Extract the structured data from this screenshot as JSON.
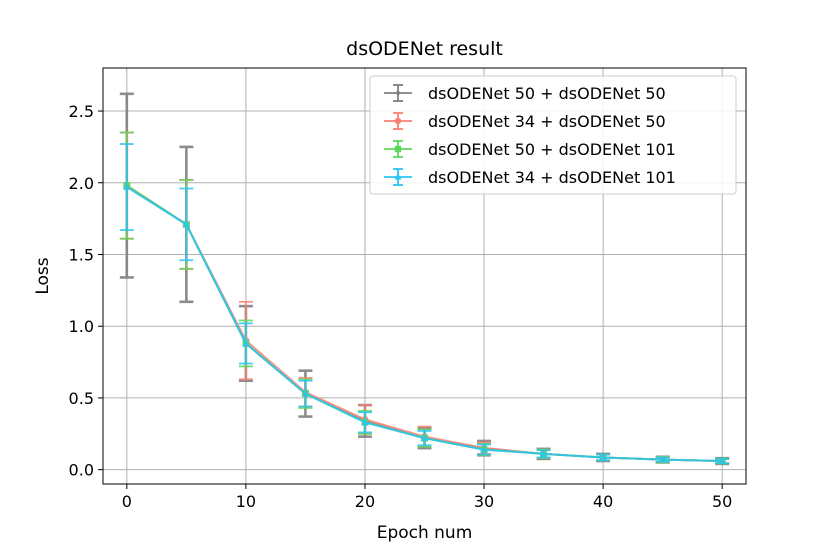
{
  "chart_data": {
    "type": "line",
    "title": "dsODENet result",
    "xlabel": "Epoch num",
    "ylabel": "Loss",
    "xlim": [
      -2,
      52
    ],
    "ylim": [
      -0.1,
      2.8
    ],
    "xticks": [
      0,
      10,
      20,
      30,
      40,
      50
    ],
    "yticks": [
      0.0,
      0.5,
      1.0,
      1.5,
      2.0,
      2.5
    ],
    "ytick_labels": [
      "0.0",
      "0.5",
      "1.0",
      "1.5",
      "2.0",
      "2.5"
    ],
    "grid": true,
    "legend_position": "top-right",
    "x": [
      0,
      5,
      10,
      15,
      20,
      25,
      30,
      35,
      40,
      45,
      50
    ],
    "series": [
      {
        "name": "dsODENet 50 + dsODENet 50",
        "color": "#808080",
        "marker": "diamond-icon",
        "values": [
          1.98,
          1.71,
          0.88,
          0.53,
          0.34,
          0.22,
          0.15,
          0.11,
          0.085,
          0.07,
          0.06
        ],
        "errors": [
          0.64,
          0.54,
          0.26,
          0.16,
          0.11,
          0.07,
          0.05,
          0.035,
          0.025,
          0.02,
          0.02
        ]
      },
      {
        "name": "dsODENet 34 + dsODENet 50",
        "color": "#fa8072",
        "marker": "circle-icon",
        "values": [
          1.98,
          1.71,
          0.9,
          0.54,
          0.35,
          0.23,
          0.15,
          0.11,
          0.085,
          0.07,
          0.06
        ],
        "errors": [
          0.37,
          0.31,
          0.27,
          0.1,
          0.1,
          0.07,
          0.04,
          0.03,
          0.02,
          0.02,
          0.015
        ]
      },
      {
        "name": "dsODENet 50 + dsODENet 101",
        "color": "#5bd85b",
        "marker": "square-icon",
        "values": [
          1.98,
          1.71,
          0.88,
          0.53,
          0.33,
          0.22,
          0.14,
          0.11,
          0.085,
          0.07,
          0.06
        ],
        "errors": [
          0.37,
          0.31,
          0.16,
          0.1,
          0.08,
          0.06,
          0.04,
          0.03,
          0.02,
          0.02,
          0.015
        ]
      },
      {
        "name": "dsODENet 34 + dsODENet 101",
        "color": "#29c5f6",
        "marker": "triangle-icon",
        "values": [
          1.97,
          1.71,
          0.88,
          0.53,
          0.33,
          0.22,
          0.14,
          0.11,
          0.085,
          0.07,
          0.06
        ],
        "errors": [
          0.3,
          0.25,
          0.14,
          0.09,
          0.07,
          0.05,
          0.035,
          0.025,
          0.02,
          0.015,
          0.015
        ]
      }
    ]
  }
}
